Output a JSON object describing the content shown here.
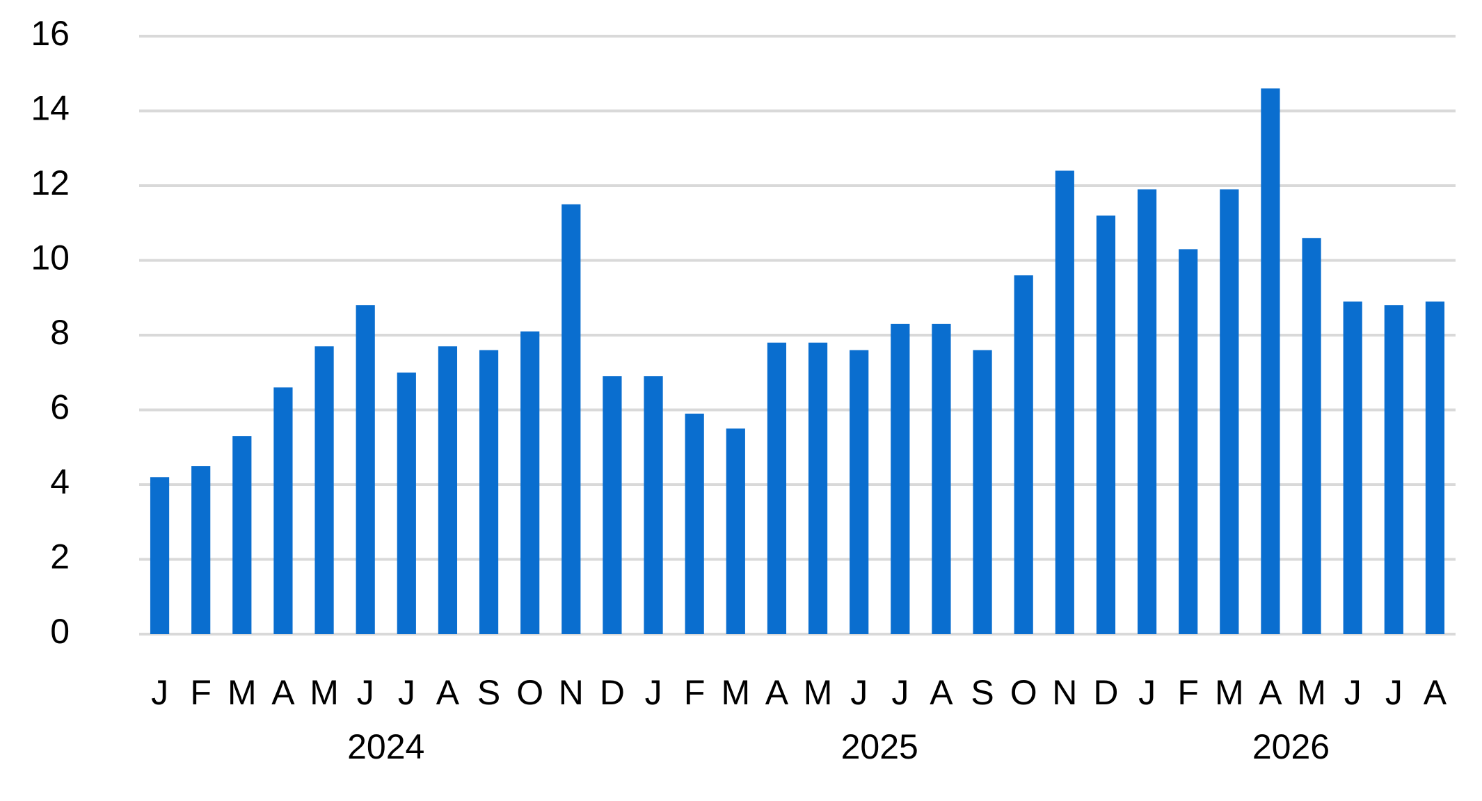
{
  "chart_data": {
    "type": "bar",
    "groups": [
      {
        "label": "2024",
        "categories": [
          "J",
          "F",
          "M",
          "A",
          "M",
          "J",
          "J",
          "A",
          "S",
          "O",
          "N",
          "D"
        ]
      },
      {
        "label": "2025",
        "categories": [
          "J",
          "F",
          "M",
          "A",
          "M",
          "J",
          "J",
          "A",
          "S",
          "O",
          "N",
          "D"
        ]
      },
      {
        "label": "2026",
        "categories": [
          "J",
          "F",
          "M",
          "A",
          "M",
          "J",
          "J",
          "A"
        ]
      }
    ],
    "values": [
      4.2,
      4.5,
      5.3,
      6.6,
      7.7,
      8.8,
      7.0,
      7.7,
      7.6,
      8.1,
      11.5,
      6.9,
      6.9,
      5.9,
      5.5,
      7.8,
      7.8,
      7.6,
      8.3,
      8.3,
      7.6,
      9.6,
      12.4,
      11.2,
      11.9,
      10.3,
      11.9,
      14.6,
      10.6,
      8.9,
      8.8,
      8.9
    ],
    "color": "#0a6ecf",
    "ylim": [
      0,
      16
    ],
    "yticks": [
      0,
      2,
      4,
      6,
      8,
      10,
      12,
      14,
      16
    ],
    "grid": true
  }
}
